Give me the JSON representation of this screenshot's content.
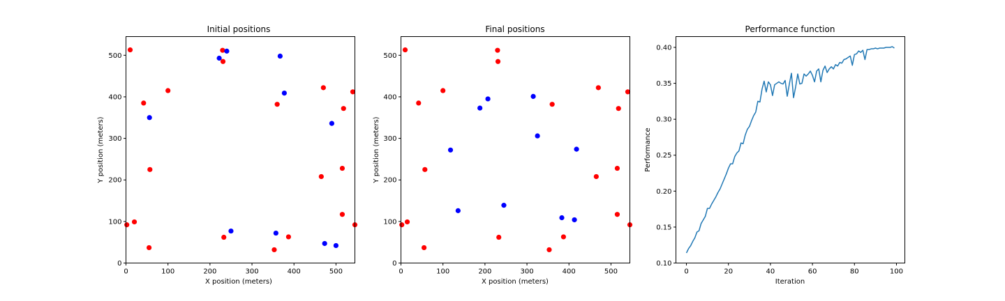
{
  "chart_data": [
    {
      "type": "scatter",
      "title": "Initial positions",
      "xlabel": "X position (meters)",
      "ylabel": "Y position (meters)",
      "xlim": [
        0,
        545
      ],
      "ylim": [
        0,
        545
      ],
      "xticks": [
        0,
        100,
        200,
        300,
        400,
        500
      ],
      "yticks": [
        0,
        100,
        200,
        300,
        400,
        500
      ],
      "series": [
        {
          "color": "#ff0000",
          "points": [
            [
              10,
              513
            ],
            [
              230,
              512
            ],
            [
              231,
              485
            ],
            [
              100,
              415
            ],
            [
              470,
              422
            ],
            [
              540,
              412
            ],
            [
              42,
              385
            ],
            [
              360,
              382
            ],
            [
              518,
              372
            ],
            [
              57,
              225
            ],
            [
              515,
              228
            ],
            [
              465,
              208
            ],
            [
              515,
              117
            ],
            [
              20,
              99
            ],
            [
              2,
              92
            ],
            [
              545,
              92
            ],
            [
              233,
              62
            ],
            [
              387,
              63
            ],
            [
              55,
              37
            ],
            [
              353,
              32
            ]
          ]
        },
        {
          "color": "#0000ff",
          "points": [
            [
              222,
              493
            ],
            [
              240,
              510
            ],
            [
              367,
              498
            ],
            [
              377,
              409
            ],
            [
              56,
              350
            ],
            [
              490,
              336
            ],
            [
              250,
              77
            ],
            [
              357,
              72
            ],
            [
              473,
              47
            ],
            [
              500,
              42
            ]
          ]
        }
      ]
    },
    {
      "type": "scatter",
      "title": "Final positions",
      "xlabel": "X position (meters)",
      "ylabel": "Y position (meters)",
      "xlim": [
        0,
        545
      ],
      "ylim": [
        0,
        545
      ],
      "xticks": [
        0,
        100,
        200,
        300,
        400,
        500
      ],
      "yticks": [
        0,
        100,
        200,
        300,
        400,
        500
      ],
      "series": [
        {
          "color": "#ff0000",
          "points": [
            [
              10,
              513
            ],
            [
              230,
              512
            ],
            [
              231,
              485
            ],
            [
              100,
              415
            ],
            [
              470,
              422
            ],
            [
              540,
              412
            ],
            [
              42,
              385
            ],
            [
              360,
              382
            ],
            [
              518,
              372
            ],
            [
              57,
              225
            ],
            [
              515,
              228
            ],
            [
              465,
              208
            ],
            [
              515,
              117
            ],
            [
              15,
              99
            ],
            [
              2,
              92
            ],
            [
              545,
              92
            ],
            [
              233,
              62
            ],
            [
              387,
              63
            ],
            [
              55,
              37
            ],
            [
              353,
              32
            ]
          ]
        },
        {
          "color": "#0000ff",
          "points": [
            [
              207,
              395
            ],
            [
              188,
              373
            ],
            [
              315,
              401
            ],
            [
              325,
              306
            ],
            [
              118,
              272
            ],
            [
              418,
              274
            ],
            [
              136,
              126
            ],
            [
              245,
              139
            ],
            [
              383,
              109
            ],
            [
              413,
              104
            ]
          ]
        }
      ]
    },
    {
      "type": "line",
      "title": "Performance function",
      "xlabel": "Iteration",
      "ylabel": "Performance",
      "xlim": [
        -5,
        104
      ],
      "ylim": [
        0.1,
        0.415
      ],
      "xticks": [
        0,
        20,
        40,
        60,
        80,
        100
      ],
      "yticks": [
        "0.10",
        "0.15",
        "0.20",
        "0.25",
        "0.30",
        "0.35",
        "0.40"
      ],
      "series": [
        {
          "color": "#1f77b4",
          "x": [
            0,
            1,
            2,
            3,
            4,
            5,
            6,
            7,
            8,
            9,
            10,
            11,
            12,
            13,
            14,
            15,
            16,
            17,
            18,
            19,
            20,
            21,
            22,
            23,
            24,
            25,
            26,
            27,
            28,
            29,
            30,
            31,
            32,
            33,
            34,
            35,
            36,
            37,
            38,
            39,
            40,
            41,
            42,
            43,
            44,
            45,
            46,
            47,
            48,
            49,
            50,
            51,
            52,
            53,
            54,
            55,
            56,
            57,
            58,
            59,
            60,
            61,
            62,
            63,
            64,
            65,
            66,
            67,
            68,
            69,
            70,
            71,
            72,
            73,
            74,
            75,
            76,
            77,
            78,
            79,
            80,
            81,
            82,
            83,
            84,
            85,
            86,
            87,
            88,
            89,
            90,
            91,
            92,
            93,
            94,
            95,
            96,
            97,
            98,
            99
          ],
          "y": [
            0.114,
            0.12,
            0.124,
            0.13,
            0.135,
            0.143,
            0.145,
            0.155,
            0.16,
            0.165,
            0.176,
            0.176,
            0.182,
            0.187,
            0.192,
            0.198,
            0.203,
            0.21,
            0.217,
            0.224,
            0.232,
            0.238,
            0.238,
            0.248,
            0.253,
            0.256,
            0.267,
            0.266,
            0.278,
            0.286,
            0.29,
            0.298,
            0.305,
            0.31,
            0.325,
            0.324,
            0.342,
            0.353,
            0.338,
            0.352,
            0.348,
            0.333,
            0.348,
            0.35,
            0.352,
            0.35,
            0.349,
            0.354,
            0.332,
            0.349,
            0.364,
            0.33,
            0.345,
            0.363,
            0.349,
            0.35,
            0.363,
            0.36,
            0.363,
            0.367,
            0.361,
            0.352,
            0.367,
            0.37,
            0.352,
            0.368,
            0.374,
            0.365,
            0.37,
            0.373,
            0.37,
            0.376,
            0.374,
            0.379,
            0.378,
            0.383,
            0.384,
            0.386,
            0.388,
            0.375,
            0.39,
            0.391,
            0.395,
            0.393,
            0.396,
            0.383,
            0.397,
            0.397,
            0.398,
            0.398,
            0.399,
            0.398,
            0.399,
            0.399,
            0.399,
            0.4,
            0.4,
            0.4,
            0.401,
            0.399
          ]
        }
      ]
    }
  ]
}
